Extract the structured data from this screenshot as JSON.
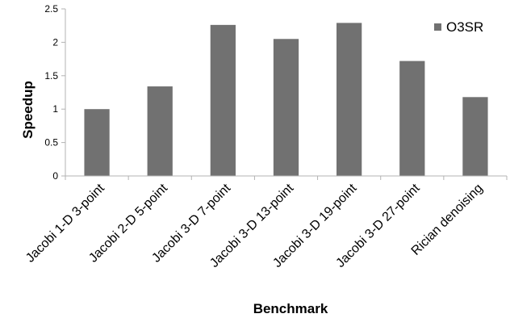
{
  "chart_data": {
    "type": "bar",
    "categories": [
      "Jacobi 1-D 3-point",
      "Jacobi 2-D 5-point",
      "Jacobi 3-D 7-point",
      "Jacobi 3-D 13-point",
      "Jacobi 3-D 19-point",
      "Jacobi 3-D 27-point",
      "Rician denoising"
    ],
    "series": [
      {
        "name": "O3SR",
        "values": [
          1.0,
          1.34,
          2.26,
          2.05,
          2.29,
          1.72,
          1.18
        ],
        "color": "#717171"
      }
    ],
    "xlabel": "Benchmark",
    "ylabel": "Speedup",
    "ylim": [
      0,
      2.5
    ],
    "yticks": [
      0,
      0.5,
      1,
      1.5,
      2,
      2.5
    ],
    "ytick_labels": [
      "0",
      "0.5",
      "1",
      "1.5",
      "2",
      "2.5"
    ],
    "grid": false,
    "legend": "top-right",
    "axis_color": "#b3b3b3"
  }
}
